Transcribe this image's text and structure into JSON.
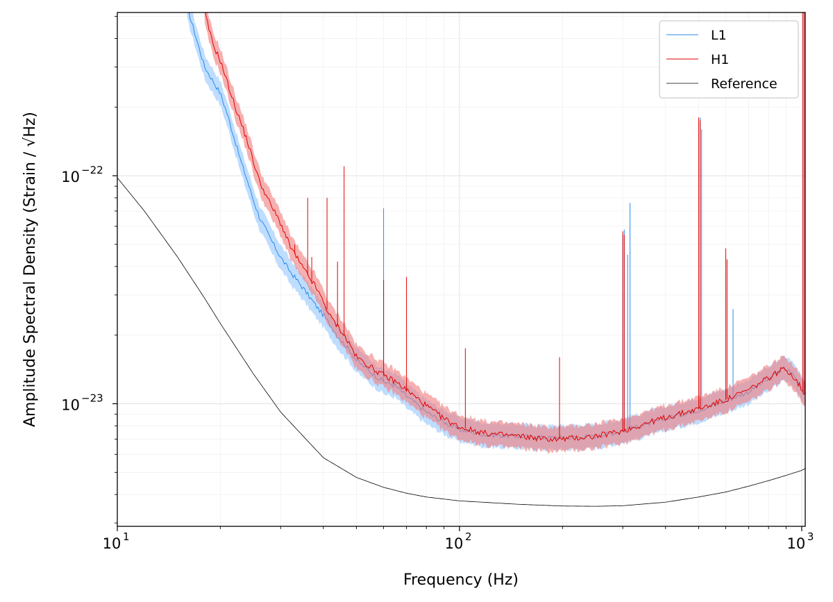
{
  "chart_data": {
    "type": "line",
    "title": "",
    "xlabel": "Frequency (Hz)",
    "ylabel": "Amplitude Spectral Density (Strain / √Hz)",
    "xscale": "log",
    "yscale": "log",
    "xlim": [
      10,
      1024
    ],
    "ylim": [
      2.9e-24,
      5.2e-22
    ],
    "grid": "major and minor, both axes",
    "legend_position": "top-right",
    "x_ticks": [
      {
        "base": "10",
        "exp": "1",
        "value": 10
      },
      {
        "base": "10",
        "exp": "2",
        "value": 100
      },
      {
        "base": "10",
        "exp": "3",
        "value": 1000
      }
    ],
    "y_ticks": [
      {
        "base": "10",
        "exp": "−23",
        "value": 1e-23
      },
      {
        "base": "10",
        "exp": "−22",
        "value": 1e-22
      }
    ],
    "series": [
      {
        "name": "L1",
        "color": "#2a8ae8",
        "band_color": "#a8d2ff",
        "x": [
          16,
          18,
          20,
          21,
          22,
          23,
          24,
          25,
          26,
          28,
          30,
          32,
          35,
          38,
          40,
          42,
          45,
          48,
          50,
          55,
          60,
          65,
          70,
          80,
          90,
          100,
          120,
          150,
          180,
          200,
          250,
          300,
          350,
          400,
          500,
          600,
          700,
          800,
          880,
          920,
          960,
          1000,
          1024
        ],
        "values": [
          5.5e-22,
          3e-22,
          2.3e-22,
          1.85e-22,
          1.45e-22,
          1.15e-22,
          9.5e-23,
          7.8e-23,
          6.6e-23,
          5.3e-23,
          4.4e-23,
          3.8e-23,
          3.2e-23,
          2.7e-23,
          2.45e-23,
          2.2e-23,
          1.9e-23,
          1.7e-23,
          1.55e-23,
          1.38e-23,
          1.25e-23,
          1.2e-23,
          1.08e-23,
          9.2e-24,
          8.3e-24,
          7.7e-24,
          7.3e-24,
          7.2e-24,
          7.1e-24,
          7.1e-24,
          7.2e-24,
          7.6e-24,
          8.1e-24,
          8.6e-24,
          9.4e-24,
          1.03e-23,
          1.13e-23,
          1.28e-23,
          1.42e-23,
          1.4e-23,
          1.3e-23,
          1.18e-23,
          1.12e-23
        ],
        "lines": [
          {
            "x": 60,
            "peak": 7.2e-23
          },
          {
            "x": 300,
            "peak": 5.5e-23
          },
          {
            "x": 303,
            "peak": 5.8e-23
          },
          {
            "x": 310,
            "peak": 4.5e-23
          },
          {
            "x": 315,
            "peak": 7.6e-23
          },
          {
            "x": 500,
            "peak": 1.5e-22
          },
          {
            "x": 505,
            "peak": 1.8e-22
          },
          {
            "x": 510,
            "peak": 1.6e-22
          },
          {
            "x": 630,
            "peak": 2.6e-23
          }
        ]
      },
      {
        "name": "H1",
        "color": "#e00000",
        "band_color": "#f08080",
        "x": [
          18,
          19,
          20,
          21,
          22,
          23,
          24,
          25,
          26,
          28,
          30,
          32,
          35,
          38,
          40,
          42,
          45,
          48,
          50,
          55,
          60,
          65,
          70,
          80,
          90,
          100,
          120,
          150,
          180,
          200,
          250,
          300,
          350,
          400,
          500,
          600,
          700,
          800,
          880,
          920,
          960,
          1000,
          1024
        ],
        "values": [
          5.2e-22,
          3.8e-22,
          3.2e-22,
          2.55e-22,
          2.05e-22,
          1.7e-22,
          1.42e-22,
          1.15e-22,
          9.5e-23,
          7.5e-23,
          6.2e-23,
          4.9e-23,
          3.9e-23,
          3.25e-23,
          2.8e-23,
          2.4e-23,
          2.1e-23,
          1.8e-23,
          1.6e-23,
          1.45e-23,
          1.33e-23,
          1.25e-23,
          1.15e-23,
          9.8e-24,
          8.6e-24,
          7.9e-24,
          7.4e-24,
          7.2e-24,
          7e-24,
          7e-24,
          7.2e-24,
          7.6e-24,
          8.2e-24,
          8.7e-24,
          9.5e-24,
          1.04e-23,
          1.15e-23,
          1.3e-23,
          1.42e-23,
          1.38e-23,
          1.28e-23,
          1.16e-23,
          1.1e-23
        ],
        "lines": [
          {
            "x": 33,
            "peak": 5e-23
          },
          {
            "x": 36,
            "peak": 8e-23
          },
          {
            "x": 37,
            "peak": 4.4e-23
          },
          {
            "x": 41,
            "peak": 8e-23
          },
          {
            "x": 44,
            "peak": 4.2e-23
          },
          {
            "x": 46,
            "peak": 1.1e-22
          },
          {
            "x": 60,
            "peak": 3.5e-23
          },
          {
            "x": 70,
            "peak": 3.6e-23
          },
          {
            "x": 104,
            "peak": 1.75e-23
          },
          {
            "x": 196,
            "peak": 1.6e-23
          },
          {
            "x": 300,
            "peak": 5.7e-23
          },
          {
            "x": 303,
            "peak": 5.5e-23
          },
          {
            "x": 500,
            "peak": 1.8e-22
          },
          {
            "x": 505,
            "peak": 1.75e-22
          },
          {
            "x": 600,
            "peak": 4.8e-23
          },
          {
            "x": 605,
            "peak": 4.3e-23
          },
          {
            "x": 1008,
            "peak": 5.2e-22
          },
          {
            "x": 1016,
            "peak": 5.2e-22
          }
        ]
      },
      {
        "name": "Reference",
        "color": "#000000",
        "x": [
          10,
          12,
          15,
          18,
          20,
          25,
          30,
          40,
          50,
          60,
          70,
          80,
          100,
          150,
          200,
          250,
          300,
          400,
          500,
          600,
          700,
          800,
          900,
          1000,
          1024
        ],
        "values": [
          9.8e-23,
          7e-23,
          4.4e-23,
          2.9e-23,
          2.25e-23,
          1.35e-23,
          9.2e-24,
          5.8e-24,
          4.75e-24,
          4.3e-24,
          4.05e-24,
          3.9e-24,
          3.75e-24,
          3.62e-24,
          3.56e-24,
          3.55e-24,
          3.57e-24,
          3.7e-24,
          3.9e-24,
          4.1e-24,
          4.35e-24,
          4.6e-24,
          4.85e-24,
          5.1e-24,
          5.2e-24
        ]
      }
    ]
  }
}
